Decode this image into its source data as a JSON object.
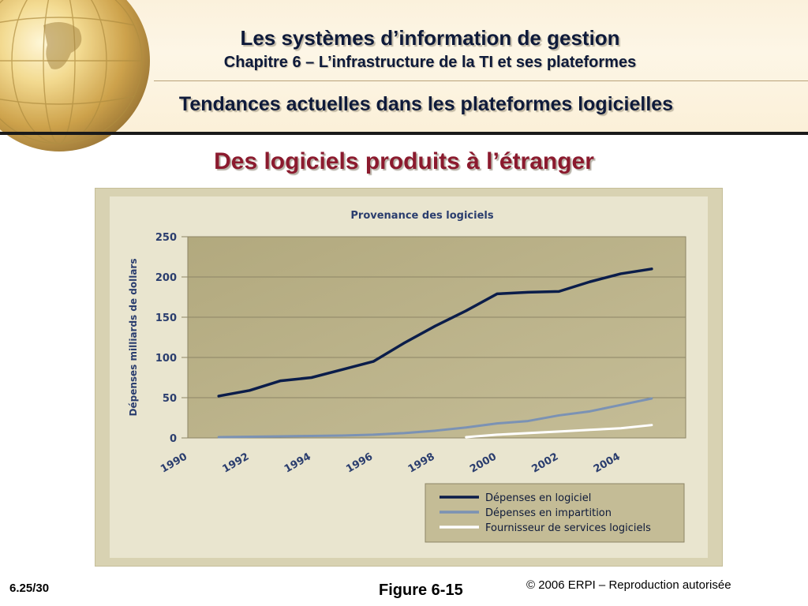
{
  "header": {
    "title": "Les systèmes d’information de gestion",
    "chapter": "Chapitre 6 – L’infrastructure de la TI et ses plateformes",
    "section": "Tendances actuelles dans les plateformes logicielles"
  },
  "slide": {
    "subtitle": "Des logiciels produits à l’étranger"
  },
  "footer": {
    "page": "6.25/30",
    "figure": "Figure 6-15",
    "copyright": "© 2006 ERPI – Reproduction autorisée"
  },
  "colors": {
    "accent_title": "#8b1a2e",
    "header_text": "#0e1a3a",
    "plot_bg": "#b6ad83",
    "series_1": "#0b1d4a",
    "series_2": "#7b92b4",
    "series_3": "#ffffff"
  },
  "chart_data": {
    "type": "line",
    "title": "Provenance des logiciels",
    "xlabel": "",
    "ylabel": "Dépenses milliards de dollars",
    "ylim": [
      0,
      250
    ],
    "xlim": [
      1990,
      2006
    ],
    "yticks": [
      0,
      50,
      100,
      150,
      200,
      250
    ],
    "xticks": [
      1990,
      1992,
      1994,
      1996,
      1998,
      2000,
      2002,
      2004
    ],
    "grid": true,
    "legend_position": "bottom-right",
    "series": [
      {
        "name": "Dépenses en logiciel",
        "color": "#0b1d4a",
        "x": [
          1991,
          1992,
          1993,
          1994,
          1995,
          1996,
          1997,
          1998,
          1999,
          2000,
          2001,
          2002,
          2003,
          2004,
          2005
        ],
        "y": [
          52,
          59,
          71,
          75,
          85,
          95,
          118,
          139,
          158,
          179,
          181,
          182,
          194,
          204,
          210
        ]
      },
      {
        "name": "Dépenses en impartition",
        "color": "#7b92b4",
        "x": [
          1991,
          1992,
          1993,
          1994,
          1995,
          1996,
          1997,
          1998,
          1999,
          2000,
          2001,
          2002,
          2003,
          2004,
          2005
        ],
        "y": [
          1,
          1.5,
          2,
          2.5,
          3,
          4,
          6,
          9,
          13,
          18,
          21,
          28,
          33,
          41,
          49
        ]
      },
      {
        "name": "Fournisseur de services logiciels",
        "color": "#ffffff",
        "x": [
          1999,
          2000,
          2001,
          2002,
          2003,
          2004,
          2005
        ],
        "y": [
          1,
          4,
          6,
          8,
          10,
          12,
          16
        ]
      }
    ]
  }
}
